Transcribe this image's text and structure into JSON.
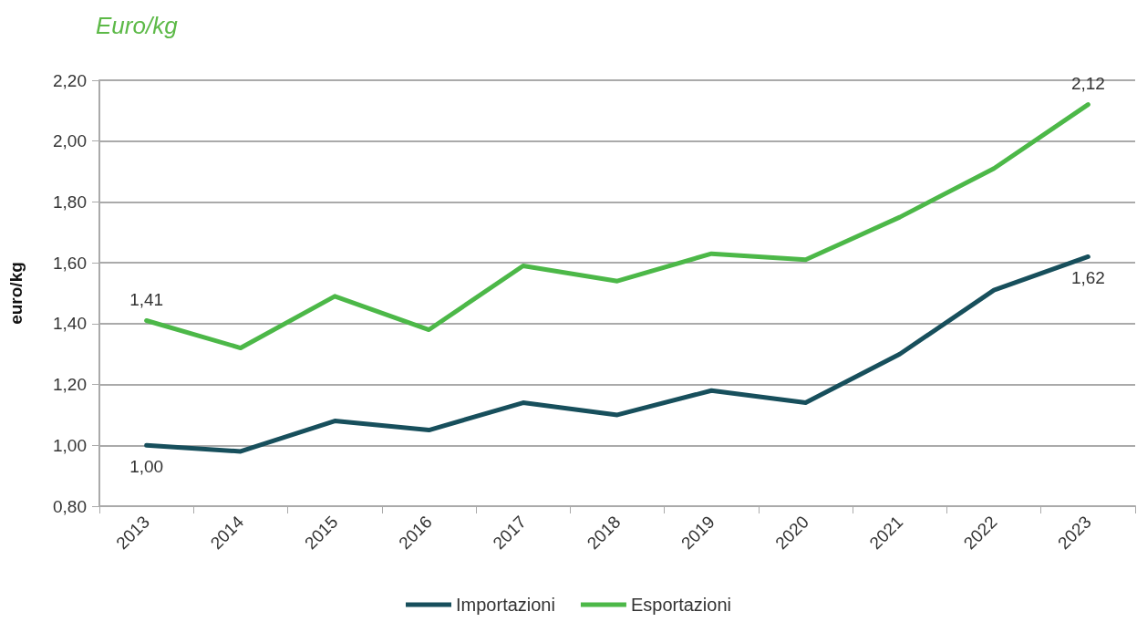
{
  "chart_data": {
    "type": "line",
    "title": "Euro/kg",
    "ylabel": "euro/kg",
    "categories": [
      "2013",
      "2014",
      "2015",
      "2016",
      "2017",
      "2018",
      "2019",
      "2020",
      "2021",
      "2022",
      "2023"
    ],
    "series": [
      {
        "name": "Importazioni",
        "color": "#174f5c",
        "values": [
          1.0,
          0.98,
          1.08,
          1.05,
          1.14,
          1.1,
          1.18,
          1.14,
          1.3,
          1.51,
          1.62
        ],
        "value_labels": [
          "1,00",
          null,
          null,
          null,
          null,
          null,
          null,
          null,
          null,
          null,
          "1,62"
        ]
      },
      {
        "name": "Esportazioni",
        "color": "#4cb848",
        "values": [
          1.41,
          1.32,
          1.49,
          1.38,
          1.59,
          1.54,
          1.63,
          1.61,
          1.75,
          1.91,
          2.12
        ],
        "value_labels": [
          "1,41",
          null,
          null,
          null,
          null,
          null,
          null,
          null,
          null,
          null,
          "2,12"
        ]
      }
    ],
    "ylim": [
      0.8,
      2.2
    ],
    "yticks": [
      {
        "value": 0.8,
        "label": "0,80"
      },
      {
        "value": 1.0,
        "label": "1,00"
      },
      {
        "value": 1.2,
        "label": "1,20"
      },
      {
        "value": 1.4,
        "label": "1,40"
      },
      {
        "value": 1.6,
        "label": "1,60"
      },
      {
        "value": 1.8,
        "label": "1,80"
      },
      {
        "value": 2.0,
        "label": "2,00"
      },
      {
        "value": 2.2,
        "label": "2,20"
      }
    ],
    "grid": "y",
    "legend": "bottom",
    "marker": "none",
    "line_style": "solid"
  }
}
